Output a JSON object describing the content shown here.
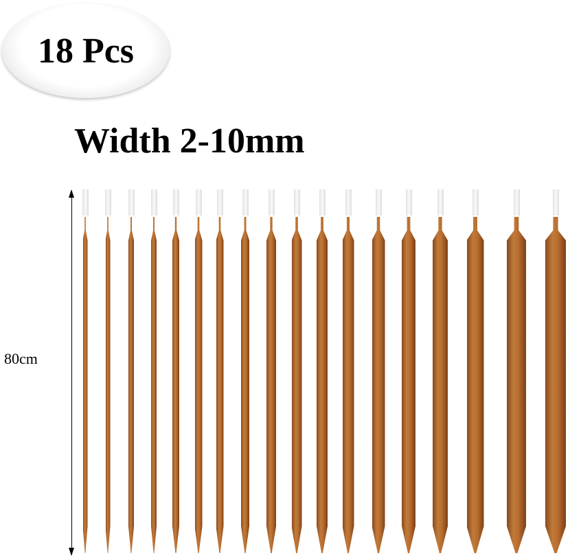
{
  "badge": {
    "text": "18 Pcs"
  },
  "title": "Width 2-10mm",
  "length_label": "80cm",
  "needle_count": 18,
  "colors": {
    "bamboo": "#b06a2e",
    "cap": "#f0f0f0"
  }
}
